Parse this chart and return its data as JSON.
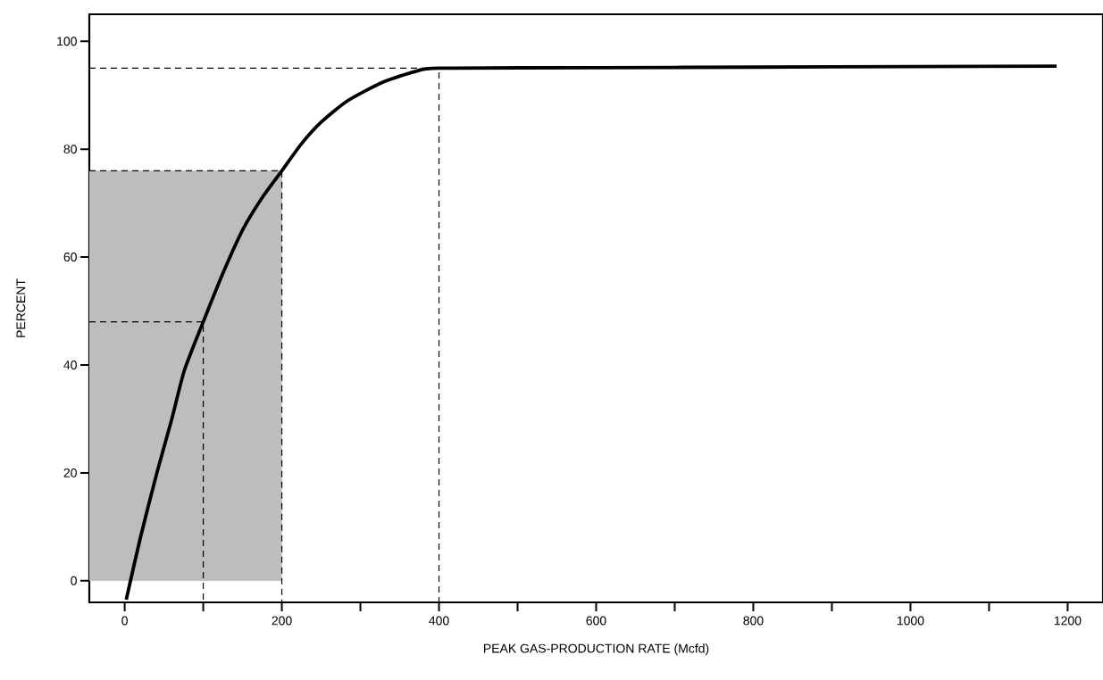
{
  "chart_data": {
    "type": "line",
    "xlabel": "PEAK GAS-PRODUCTION RATE (Mcfd)",
    "ylabel": "PERCENT",
    "xlim": [
      -45,
      1245
    ],
    "ylim": [
      -4,
      105
    ],
    "xticks": [
      0,
      {
        "value": 100,
        "label": null
      },
      200,
      {
        "value": 300,
        "label": null
      },
      400,
      {
        "value": 500,
        "label": null
      },
      600,
      {
        "value": 700,
        "label": null
      },
      800,
      {
        "value": 900,
        "label": null
      },
      1000,
      {
        "value": 1100,
        "label": null
      },
      1200
    ],
    "yticks": [
      0,
      20,
      40,
      60,
      80,
      100
    ],
    "grid": false,
    "legend": false,
    "marker": "none",
    "series": [
      {
        "type": "area",
        "color": "#bdbdbd",
        "x": [
          -45,
          200
        ],
        "values": [
          76,
          76
        ]
      },
      {
        "line_style": "dashed",
        "color": "#000000",
        "x": [
          -45,
          400,
          400
        ],
        "values": [
          95,
          95,
          -4
        ]
      },
      {
        "line_style": "dashed",
        "color": "#000000",
        "x": [
          -45,
          200,
          200
        ],
        "values": [
          76,
          76,
          -4
        ]
      },
      {
        "line_style": "dashed",
        "color": "#000000",
        "x": [
          -45,
          100,
          100
        ],
        "values": [
          48,
          48,
          -4
        ]
      },
      {
        "line_style": "solid",
        "color": "#000000",
        "x": [
          2,
          20,
          41,
          60,
          76,
          100,
          125,
          150,
          175,
          200,
          225,
          250,
          284,
          330,
          370,
          400,
          600,
          800,
          1000,
          1186
        ],
        "values": [
          -3.5,
          8,
          20,
          30,
          39,
          48,
          57,
          65,
          71,
          76,
          81,
          85,
          89,
          92.5,
          94.4,
          95,
          95.1,
          95.2,
          95.3,
          95.4
        ]
      }
    ]
  }
}
